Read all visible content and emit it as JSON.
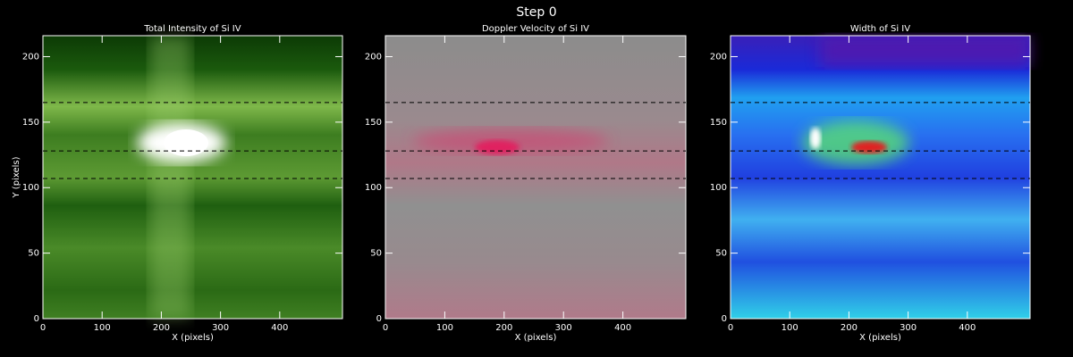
{
  "title": "Step 0",
  "chart_data": [
    {
      "type": "image",
      "title": "Total Intensity of Si IV",
      "xlabel": "X (pixels)",
      "ylabel": "Y (pixels)",
      "xlim": [
        0,
        506
      ],
      "ylim": [
        0,
        216
      ],
      "xticks": [
        0,
        100,
        200,
        300,
        400
      ],
      "yticks": [
        0,
        50,
        100,
        150,
        200
      ],
      "hlines": [
        165,
        128,
        107
      ]
    },
    {
      "type": "image",
      "title": "Doppler Velocity of Si IV",
      "xlabel": "X (pixels)",
      "xlim": [
        0,
        506
      ],
      "ylim": [
        0,
        216
      ],
      "xticks": [
        0,
        100,
        200,
        300,
        400
      ],
      "yticks": [
        0,
        50,
        100,
        150,
        200
      ],
      "hlines": [
        165,
        128,
        107
      ]
    },
    {
      "type": "image",
      "title": "Width of Si IV",
      "xlabel": "X (pixels)",
      "xlim": [
        0,
        506
      ],
      "ylim": [
        0,
        216
      ],
      "xticks": [
        0,
        100,
        200,
        300,
        400
      ],
      "yticks": [
        0,
        50,
        100,
        150,
        200
      ],
      "hlines": [
        165,
        128,
        107
      ]
    }
  ]
}
